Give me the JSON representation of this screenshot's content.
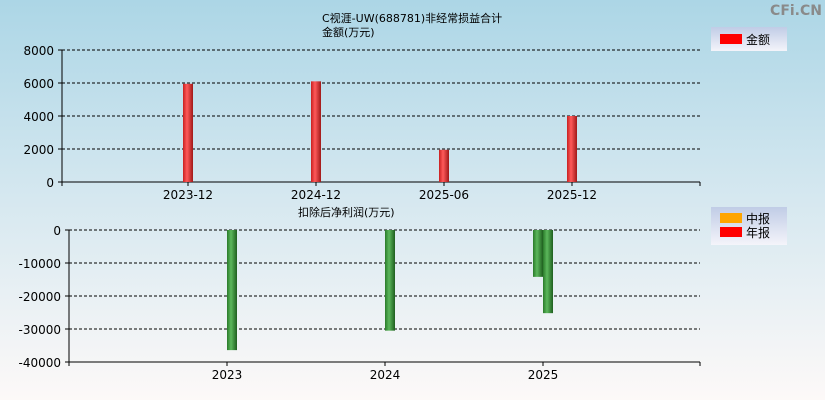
{
  "watermark": "CFi.CN",
  "chart_data": [
    {
      "type": "bar",
      "title": "C视涯-UW(688781)非经常损益合计",
      "subtitle": "金额(万元)",
      "categories": [
        "2023-12",
        "2024-12",
        "2025-06",
        "2025-12"
      ],
      "series": [
        {
          "name": "金额",
          "color": "#ff0000",
          "values": [
            5950,
            6100,
            1950,
            4000
          ]
        }
      ],
      "yticks": [
        "0",
        "2000",
        "4000",
        "6000",
        "8000"
      ],
      "ylim": [
        0,
        8000
      ],
      "grid": true,
      "legend": "top-right"
    },
    {
      "type": "bar",
      "title": "扣除后净利润(万元)",
      "categories": [
        "2023",
        "2024",
        "2025"
      ],
      "legend_entries": [
        {
          "name": "中报",
          "color": "#ffa500"
        },
        {
          "name": "年报",
          "color": "#ff0000"
        }
      ],
      "bar_color": "#3a8f3a",
      "series": [
        {
          "name": "中报",
          "values": [
            null,
            null,
            -14200
          ]
        },
        {
          "name": "年报",
          "values": [
            -36400,
            -30500,
            -25200
          ]
        }
      ],
      "yticks": [
        "0",
        "-10000",
        "-20000",
        "-30000",
        "-40000"
      ],
      "ylim": [
        -40000,
        0
      ],
      "grid": true,
      "legend": "top-right"
    }
  ]
}
